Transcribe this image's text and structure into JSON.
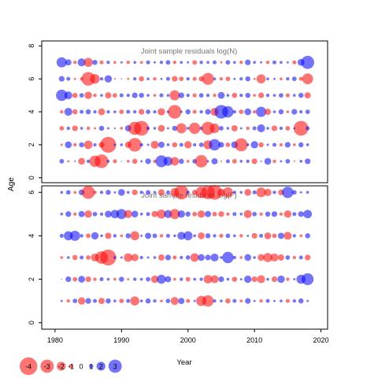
{
  "chart_data": [
    {
      "type": "scatter",
      "title": "Joint sample residuals log(N)",
      "xlabel": "Year",
      "ylabel": "Age",
      "xlim": [
        1978,
        2021
      ],
      "ylim": [
        -0.3,
        8.3
      ],
      "yticks": [
        0,
        2,
        4,
        6,
        8
      ],
      "grid": false,
      "x": [
        1981,
        1982,
        1983,
        1984,
        1985,
        1986,
        1987,
        1988,
        1989,
        1990,
        1991,
        1992,
        1993,
        1994,
        1995,
        1996,
        1997,
        1998,
        1999,
        2000,
        2001,
        2002,
        2003,
        2004,
        2005,
        2006,
        2007,
        2008,
        2009,
        2010,
        2011,
        2012,
        2013,
        2014,
        2015,
        2016,
        2017,
        2018
      ],
      "ages": [
        1,
        2,
        3,
        4,
        5,
        6,
        7
      ],
      "residuals": [
        [
          0.8,
          -0.4,
          0.3,
          -1.2,
          0.6,
          -2.0,
          -2.4,
          0.5,
          -0.7,
          0.2,
          -0.5,
          -0.9,
          0.4,
          1.0,
          -0.6,
          2.1,
          1.6,
          -1.5,
          0.9,
          -0.5,
          0.8,
          -2.2,
          0.4,
          1.1,
          -0.3,
          0.7,
          -0.8,
          0.5,
          0.6,
          -1.0,
          0.3,
          1.2,
          -0.6,
          0.4,
          0.8,
          -0.3,
          0.5,
          1.0
        ],
        [
          -0.4,
          1.2,
          -0.6,
          0.9,
          -1.5,
          0.6,
          -1.0,
          -2.8,
          0.4,
          0.5,
          -1.1,
          -2.4,
          0.6,
          0.4,
          -1.4,
          1.1,
          0.5,
          -0.9,
          0.7,
          -1.3,
          0.6,
          0.8,
          -1.6,
          2.0,
          1.0,
          -0.8,
          1.2,
          -2.3,
          0.5,
          1.3,
          -0.9,
          0.4,
          0.7,
          -0.6,
          1.0,
          -0.5,
          0.9,
          0.5
        ],
        [
          -0.8,
          0.6,
          -1.0,
          0.5,
          -0.6,
          -0.4,
          0.9,
          0.4,
          0.3,
          -0.5,
          1.1,
          -2.3,
          -2.6,
          0.6,
          0.5,
          -1.2,
          0.4,
          0.9,
          -1.8,
          0.5,
          -2.0,
          0.6,
          -2.3,
          -1.7,
          0.8,
          0.5,
          -1.1,
          0.4,
          -0.6,
          0.7,
          1.4,
          0.5,
          -1.0,
          0.6,
          -0.8,
          0.4,
          -2.6,
          0.7
        ],
        [
          -0.6,
          1.4,
          -0.9,
          0.7,
          0.9,
          0.6,
          -1.2,
          0.6,
          0.5,
          -0.8,
          0.7,
          0.6,
          -1.0,
          0.8,
          0.6,
          -1.3,
          0.5,
          -2.4,
          0.4,
          0.9,
          -0.7,
          0.6,
          1.0,
          -1.4,
          2.4,
          2.0,
          0.6,
          -0.8,
          1.2,
          -0.6,
          1.8,
          -1.1,
          0.5,
          0.9,
          -0.5,
          1.0,
          0.6,
          0.8
        ],
        [
          2.0,
          1.4,
          -0.9,
          0.8,
          -1.3,
          -0.6,
          0.5,
          -1.1,
          -0.8,
          0.7,
          0.6,
          1.0,
          0.9,
          0.5,
          -0.5,
          0.7,
          0.5,
          -1.8,
          1.0,
          0.6,
          -0.7,
          0.8,
          0.6,
          -0.6,
          1.2,
          0.5,
          -0.9,
          0.6,
          0.9,
          -0.5,
          -1.0,
          0.6,
          0.5,
          0.8,
          -0.7,
          0.5,
          0.9,
          -1.1
        ],
        [
          1.0,
          0.7,
          -0.4,
          -0.6,
          -2.4,
          -1.7,
          0.6,
          1.3,
          -0.3,
          0.2,
          -0.4,
          0.6,
          -0.9,
          0.5,
          -0.6,
          0.4,
          0.7,
          -1.0,
          -0.8,
          0.6,
          -0.7,
          -0.9,
          -2.1,
          0.5,
          -0.6,
          -0.8,
          0.4,
          0.6,
          0.9,
          -0.4,
          -1.6,
          0.5,
          0.4,
          -0.5,
          0.6,
          0.8,
          -0.7,
          -1.9
        ],
        [
          1.8,
          1.1,
          -0.6,
          1.4,
          -1.6,
          0.9,
          -0.7,
          0.6,
          -0.5,
          0.4,
          -0.6,
          0.5,
          -0.5,
          0.7,
          0.4,
          0.6,
          0.8,
          -0.6,
          0.5,
          0.4,
          -0.8,
          0.6,
          0.5,
          0.7,
          -0.4,
          0.8,
          0.5,
          -0.6,
          1.0,
          0.5,
          0.4,
          -0.6,
          0.7,
          0.5,
          0.4,
          -0.7,
          1.2,
          2.3
        ]
      ]
    },
    {
      "type": "scatter",
      "title": "Joint sample residuals log(F)",
      "xlabel": "Year",
      "ylabel": "Age",
      "xlim": [
        1978,
        2021
      ],
      "ylim": [
        -0.3,
        6.3
      ],
      "xticks": [
        1980,
        1990,
        2000,
        2010,
        2020
      ],
      "yticks": [
        0,
        2,
        4,
        6
      ],
      "grid": false,
      "x": [
        1981,
        1982,
        1983,
        1984,
        1985,
        1986,
        1987,
        1988,
        1989,
        1990,
        1991,
        1992,
        1993,
        1994,
        1995,
        1996,
        1997,
        1998,
        1999,
        2000,
        2001,
        2002,
        2003,
        2004,
        2005,
        2006,
        2007,
        2008,
        2009,
        2010,
        2011,
        2012,
        2013,
        2014,
        2015,
        2016,
        2017,
        2018
      ],
      "ages": [
        1,
        2,
        3,
        4,
        5,
        6
      ],
      "residuals": [
        [
          0.4,
          -0.6,
          0.8,
          -1.3,
          1.0,
          0.7,
          -1.1,
          0.9,
          0.5,
          -0.8,
          0.7,
          -1.6,
          0.5,
          0.9,
          0.6,
          -0.5,
          0.8,
          -1.4,
          1.1,
          -0.7,
          0.4,
          -1.8,
          -2.0,
          0.6,
          0.5,
          -0.9,
          0.7,
          -0.5,
          1.0,
          0.4,
          -0.6,
          0.7,
          0.4,
          0.5,
          -0.7,
          0.6,
          0.9,
          0.4
        ],
        [
          0.0,
          1.0,
          -0.8,
          1.2,
          -1.0,
          -0.6,
          0.7,
          0.5,
          -0.5,
          0.9,
          -0.4,
          0.6,
          0.5,
          0.8,
          -1.3,
          1.6,
          1.1,
          -0.5,
          0.6,
          -0.8,
          0.5,
          0.6,
          -1.5,
          -1.4,
          1.0,
          0.5,
          -0.9,
          0.4,
          1.3,
          -1.0,
          -1.4,
          0.5,
          -1.0,
          1.3,
          -0.6,
          0.4,
          1.6,
          2.1
        ],
        [
          -0.5,
          0.5,
          -0.9,
          0.7,
          -0.8,
          -1.4,
          -2.2,
          -2.8,
          0.5,
          0.4,
          -1.5,
          -1.3,
          0.6,
          0.4,
          0.5,
          -1.1,
          1.0,
          -0.7,
          0.6,
          0.8,
          -1.5,
          1.2,
          1.0,
          1.4,
          0.5,
          2.0,
          0.6,
          -0.5,
          1.2,
          0.5,
          -1.2,
          -1.6,
          -1.4,
          -1.1,
          0.8,
          -0.6,
          0.7,
          -1.0
        ],
        [
          0.7,
          1.6,
          1.8,
          0.6,
          -0.8,
          1.3,
          0.5,
          -1.1,
          0.6,
          -0.5,
          0.9,
          -1.6,
          0.4,
          1.1,
          0.8,
          -0.6,
          0.7,
          0.5,
          1.4,
          1.6,
          0.5,
          -1.2,
          0.9,
          0.6,
          -0.7,
          0.8,
          0.5,
          -0.6,
          0.4,
          -1.0,
          0.7,
          -1.2,
          -0.8,
          1.1,
          -1.4,
          0.6,
          -0.5,
          0.9
        ],
        [
          0.5,
          1.0,
          -0.6,
          1.1,
          -1.3,
          0.8,
          0.6,
          1.2,
          1.5,
          1.8,
          -1.4,
          1.2,
          0.5,
          0.7,
          -1.1,
          -1.6,
          1.4,
          -1.8,
          1.3,
          0.9,
          -0.8,
          -1.3,
          1.1,
          -0.8,
          -1.0,
          -0.6,
          0.7,
          0.5,
          -1.4,
          0.8,
          -0.6,
          0.9,
          1.0,
          -0.6,
          -1.3,
          0.7,
          1.0,
          1.5
        ],
        [
          0.5,
          0.8,
          -0.5,
          1.0,
          -2.3,
          -0.6,
          0.6,
          0.9,
          0.4,
          1.2,
          0.5,
          -1.0,
          0.6,
          0.8,
          0.5,
          -1.1,
          0.7,
          -1.5,
          -2.5,
          0.6,
          -0.9,
          -2.0,
          -2.4,
          -2.6,
          -1.3,
          -1.8,
          0.6,
          0.5,
          -1.2,
          0.7,
          -1.7,
          -1.3,
          0.6,
          -1.0,
          2.0,
          0.8,
          0.4,
          0.5
        ]
      ]
    }
  ],
  "legend": {
    "entries": [
      {
        "label": "-4",
        "value": -4
      },
      {
        "label": "-3",
        "value": -3
      },
      {
        "label": "-2",
        "value": -2
      },
      {
        "label": "-1",
        "value": -1
      },
      {
        "label": "0",
        "value": 0
      },
      {
        "label": "1",
        "value": 1
      },
      {
        "label": "2",
        "value": 2
      },
      {
        "label": "3",
        "value": 3
      }
    ],
    "xlabel": "Year",
    "placement": "bottom-left"
  },
  "colors": {
    "negative": "#ff0000",
    "positive": "#0000ff",
    "fill_opacity": 0.55,
    "title_text": "#777777",
    "axis": "#000000"
  }
}
